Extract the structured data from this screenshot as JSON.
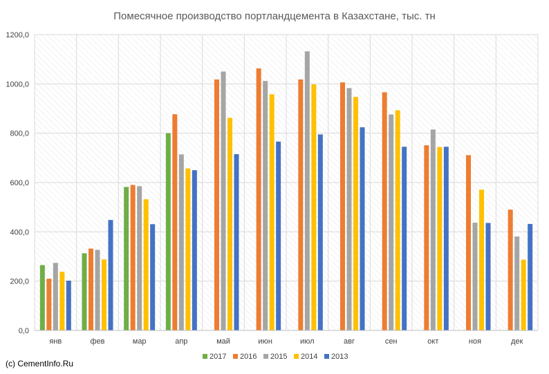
{
  "chart_data": {
    "type": "bar",
    "title": "Помесячное производство портландцемента в Казахстане, тыс. тн",
    "categories": [
      "янв",
      "фев",
      "мар",
      "апр",
      "май",
      "июн",
      "июл",
      "авг",
      "сен",
      "окт",
      "ноя",
      "дек"
    ],
    "series": [
      {
        "name": "2017",
        "color": "#70ad47",
        "values": [
          265,
          313,
          582,
          800,
          null,
          null,
          null,
          null,
          null,
          null,
          null,
          null
        ]
      },
      {
        "name": "2016",
        "color": "#ed7d31",
        "values": [
          210,
          332,
          590,
          877,
          1018,
          1063,
          1018,
          1006,
          966,
          751,
          711,
          490
        ]
      },
      {
        "name": "2015",
        "color": "#a5a5a5",
        "values": [
          274,
          327,
          585,
          714,
          1050,
          1012,
          1132,
          983,
          876,
          815,
          437,
          381
        ]
      },
      {
        "name": "2014",
        "color": "#ffc000",
        "values": [
          238,
          288,
          532,
          657,
          862,
          958,
          998,
          947,
          893,
          744,
          571,
          287
        ]
      },
      {
        "name": "2013",
        "color": "#4472c4",
        "values": [
          202,
          448,
          431,
          650,
          715,
          766,
          795,
          824,
          745,
          745,
          436,
          432
        ]
      }
    ],
    "ylim": [
      0,
      1200
    ],
    "yticks": [
      "0,0",
      "200,0",
      "400,0",
      "600,0",
      "800,0",
      "1000,0",
      "1200,0"
    ],
    "grid": true,
    "legend_position": "bottom"
  },
  "credit": "(c) CementInfo.Ru"
}
